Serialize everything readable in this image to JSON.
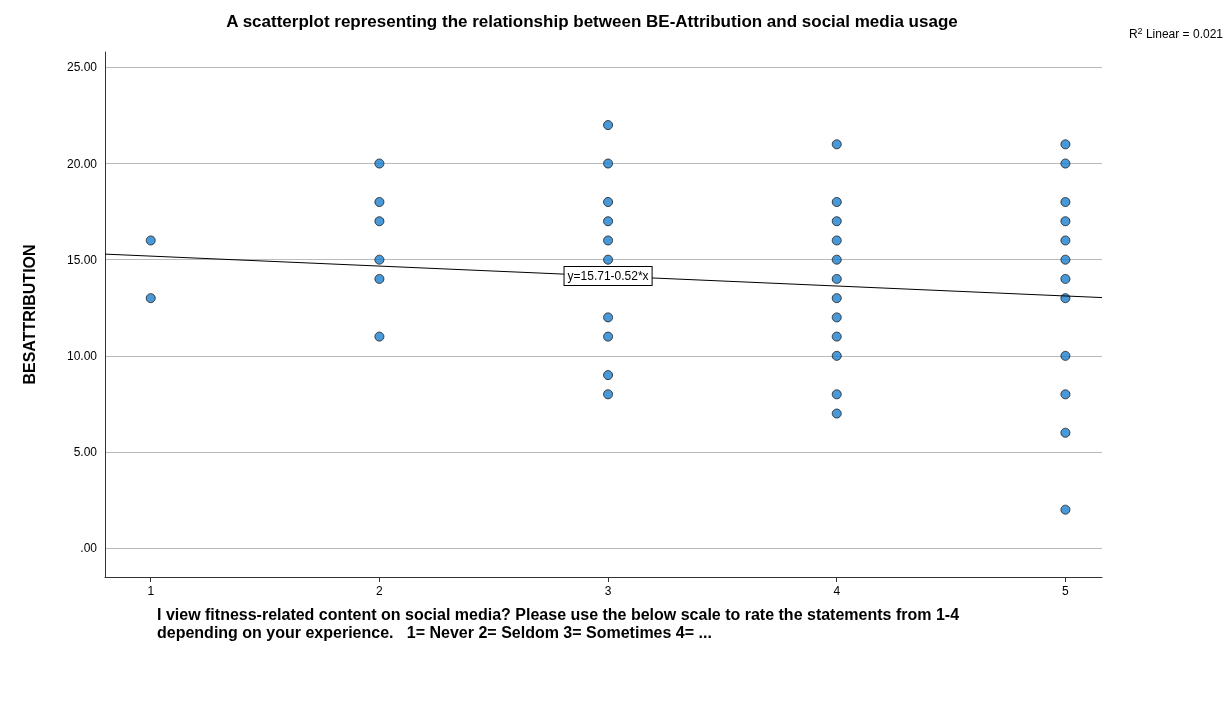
{
  "chart_data": {
    "type": "scatter",
    "title": "A scatterplot representing the relationship between BE-Attribution and social media usage",
    "xlabel": "I view fitness-related content on social media? Please use the below scale to rate the statements from 1-4 depending on your experience.   1= Never 2= Seldom 3= Sometimes 4= ...",
    "ylabel": "BESATTRIBUTION",
    "series": [
      {
        "color": "#1c7fd0",
        "marker": "circle",
        "x": [
          1,
          1,
          2,
          2,
          2,
          2,
          2,
          2,
          3,
          3,
          3,
          3,
          3,
          3,
          3,
          3,
          3,
          3,
          4,
          4,
          4,
          4,
          4,
          4,
          4,
          4,
          4,
          4,
          4,
          4,
          5,
          5,
          5,
          5,
          5,
          5,
          5,
          5,
          5,
          5,
          5,
          5
        ],
        "values": [
          16,
          13,
          20,
          18,
          17,
          15,
          14,
          11,
          22,
          20,
          18,
          17,
          16,
          15,
          12,
          11,
          9,
          8,
          21,
          18,
          17,
          16,
          15,
          14,
          13,
          12,
          11,
          10,
          8,
          7,
          21,
          20,
          18,
          17,
          16,
          15,
          14,
          13,
          10,
          8,
          6,
          2
        ]
      },
      {
        "type": "line",
        "color": "#000000",
        "x": [
          0.8,
          5.16
        ],
        "values": [
          15.29,
          13.03
        ]
      }
    ],
    "xlim": [
      0.8,
      5.16
    ],
    "xticks": [
      1,
      2,
      3,
      4,
      5
    ],
    "ylim": [
      -1.5,
      25.8
    ],
    "yticks": [
      {
        "value": 0,
        "label": ".00"
      },
      {
        "value": 5,
        "label": "5.00"
      },
      {
        "value": 10,
        "label": "10.00"
      },
      {
        "value": 15,
        "label": "15.00"
      },
      {
        "value": 20,
        "label": "20.00"
      },
      {
        "value": 25,
        "label": "25.00"
      }
    ],
    "annotations": [
      {
        "text": "y=15.71-0.52*x",
        "x": 3,
        "y": 14.15
      },
      "R$^{2}$ Linear = 0.021"
    ],
    "grid": "y",
    "line_style": "solid"
  }
}
